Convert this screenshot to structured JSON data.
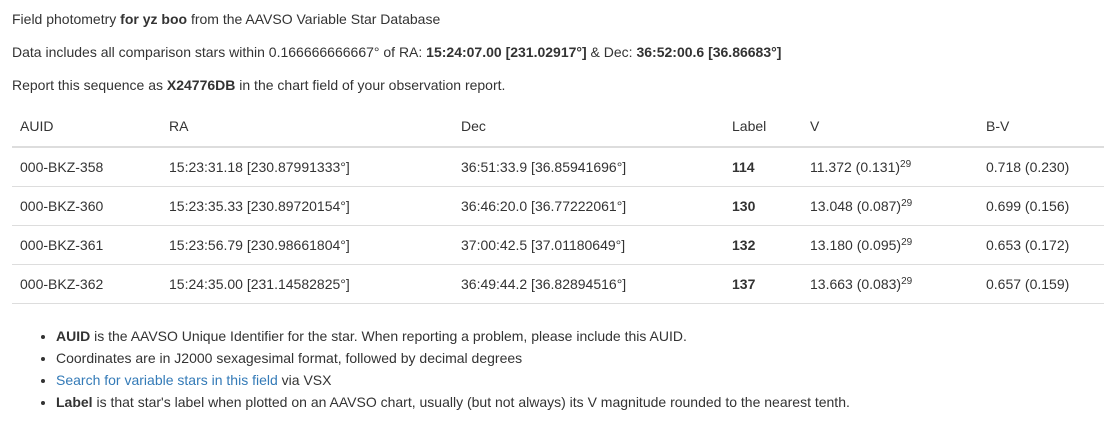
{
  "intro": {
    "line1_prefix": "Field photometry ",
    "line1_bold": "for yz boo",
    "line1_suffix": " from the AAVSO Variable Star Database",
    "line2_prefix": "Data includes all comparison stars within 0.166666666667° of RA: ",
    "line2_ra": "15:24:07.00 [231.02917°]",
    "line2_mid": " & Dec: ",
    "line2_dec": "36:52:00.6 [36.86683°]",
    "line3_prefix": "Report this sequence as ",
    "line3_code": "X24776DB",
    "line3_suffix": " in the chart field of your observation report."
  },
  "table": {
    "headers": {
      "auid": "AUID",
      "ra": "RA",
      "dec": "Dec",
      "label": "Label",
      "v": "V",
      "bv": "B-V"
    },
    "rows": [
      {
        "auid": "000-BKZ-358",
        "ra": "15:23:31.18 [230.87991333°]",
        "dec": "36:51:33.9 [36.85941696°]",
        "label": "114",
        "v": "11.372 (0.131)",
        "v_sup": "29",
        "bv": "0.718 (0.230)"
      },
      {
        "auid": "000-BKZ-360",
        "ra": "15:23:35.33 [230.89720154°]",
        "dec": "36:46:20.0 [36.77222061°]",
        "label": "130",
        "v": "13.048 (0.087)",
        "v_sup": "29",
        "bv": "0.699 (0.156)"
      },
      {
        "auid": "000-BKZ-361",
        "ra": "15:23:56.79 [230.98661804°]",
        "dec": "37:00:42.5 [37.01180649°]",
        "label": "132",
        "v": "13.180 (0.095)",
        "v_sup": "29",
        "bv": "0.653 (0.172)"
      },
      {
        "auid": "000-BKZ-362",
        "ra": "15:24:35.00 [231.14582825°]",
        "dec": "36:49:44.2 [36.82894516°]",
        "label": "137",
        "v": "13.663 (0.083)",
        "v_sup": "29",
        "bv": "0.657 (0.159)"
      }
    ]
  },
  "notes": {
    "auid_bold": "AUID",
    "auid_text": " is the AAVSO Unique Identifier for the star. When reporting a problem, please include this AUID.",
    "coords_text": "Coordinates are in J2000 sexagesimal format, followed by decimal degrees",
    "vsx_link": "Search for variable stars in this field",
    "vsx_suffix": " via VSX",
    "label_bold": "Label",
    "label_text": " is that star's label when plotted on an AAVSO chart, usually (but not always) its V magnitude rounded to the nearest tenth.",
    "link_color": "#337ab7"
  }
}
